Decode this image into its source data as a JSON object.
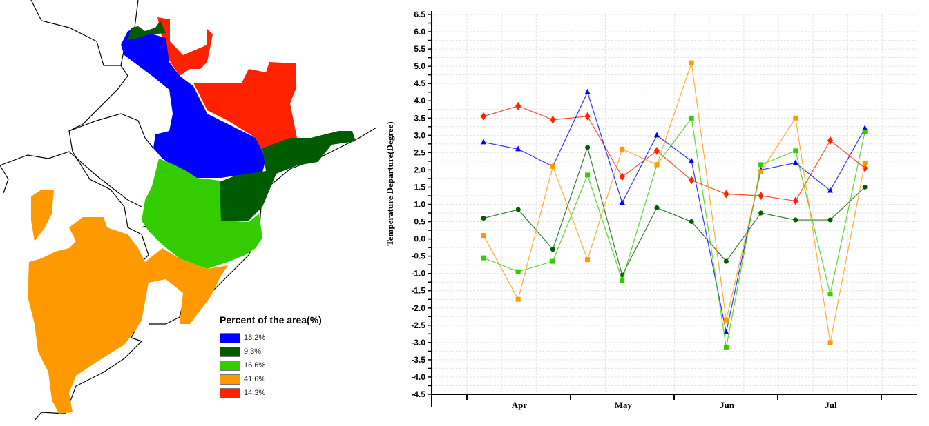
{
  "legend": {
    "title": "Percent of the area(%)",
    "items": [
      {
        "label": "18.2%",
        "color": "#0000ff"
      },
      {
        "label": "9.3%",
        "color": "#005c00"
      },
      {
        "label": "16.6%",
        "color": "#33cc00"
      },
      {
        "label": "41.6%",
        "color": "#ff9900"
      },
      {
        "label": "14.3%",
        "color": "#ff2200"
      }
    ]
  },
  "chart_data": {
    "type": "line",
    "ylabel": "Temperature Departure(Degree)",
    "xlabel": "",
    "ylim": [
      -4.5,
      6.5
    ],
    "ytick_step": 0.5,
    "grid": true,
    "month_labels": [
      "Apr",
      "May",
      "Jun",
      "Jul"
    ],
    "series": [
      {
        "name": "red",
        "color": "#ff2200",
        "marker": "diamond",
        "values": [
          3.55,
          3.85,
          3.45,
          3.55,
          1.8,
          2.55,
          1.7,
          1.3,
          1.25,
          1.1,
          2.85,
          2.05
        ]
      },
      {
        "name": "blue",
        "color": "#0000ff",
        "marker": "triangle",
        "values": [
          2.8,
          2.6,
          2.1,
          4.25,
          1.05,
          3.0,
          2.25,
          -2.7,
          2.0,
          2.2,
          1.4,
          3.2
        ]
      },
      {
        "name": "dark-green",
        "color": "#005c00",
        "marker": "circle",
        "values": [
          0.6,
          0.85,
          -0.3,
          2.65,
          -1.05,
          0.9,
          0.5,
          -0.65,
          0.75,
          0.55,
          0.55,
          1.5
        ]
      },
      {
        "name": "light-green",
        "color": "#33cc00",
        "marker": "square",
        "values": [
          -0.55,
          -0.95,
          -0.65,
          1.85,
          -1.2,
          2.15,
          3.5,
          -3.15,
          2.15,
          2.55,
          -1.6,
          3.1
        ]
      },
      {
        "name": "orange",
        "color": "#ff9900",
        "marker": "square",
        "values": [
          0.1,
          -1.75,
          2.1,
          -0.6,
          2.6,
          2.15,
          5.1,
          -2.35,
          1.95,
          3.5,
          -3.0,
          2.2
        ]
      }
    ]
  }
}
